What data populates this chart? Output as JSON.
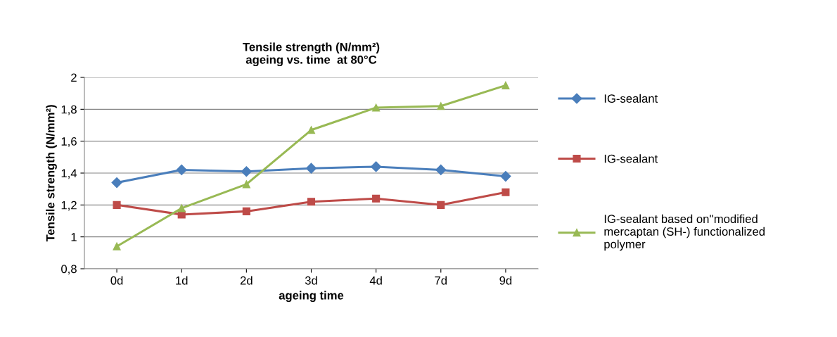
{
  "chart_data": {
    "type": "line",
    "title": "Tensile strength (N/mm²)\nageing vs. time  at 80°C",
    "xlabel": "ageing time",
    "ylabel": "Tensile strength (N/mm²)",
    "categories": [
      "0d",
      "1d",
      "2d",
      "3d",
      "4d",
      "7d",
      "9d"
    ],
    "series": [
      {
        "name": "IG-sealant",
        "color": "#4a7ebb",
        "marker": "diamond",
        "values": [
          1.34,
          1.42,
          1.41,
          1.43,
          1.44,
          1.42,
          1.38
        ]
      },
      {
        "name": "IG-sealant",
        "color": "#be4b48",
        "marker": "square",
        "values": [
          1.2,
          1.14,
          1.16,
          1.22,
          1.24,
          1.2,
          1.28
        ]
      },
      {
        "name": "IG-sealant based on''modified mercaptan (SH-) functionalized polymer",
        "color": "#98b954",
        "marker": "triangle",
        "values": [
          0.94,
          1.18,
          1.33,
          1.67,
          1.81,
          1.82,
          1.95
        ]
      }
    ],
    "ylim": [
      0.8,
      2
    ],
    "yticks": [
      {
        "value": 0.8,
        "label": "0,8"
      },
      1,
      {
        "value": 1.2,
        "label": "1,2"
      },
      {
        "value": 1.4,
        "label": "1,4"
      },
      {
        "value": 1.6,
        "label": "1,6"
      },
      {
        "value": 1.8,
        "label": "1,8"
      },
      2
    ],
    "grid": "y",
    "legend": "right",
    "line_style": "solid"
  }
}
